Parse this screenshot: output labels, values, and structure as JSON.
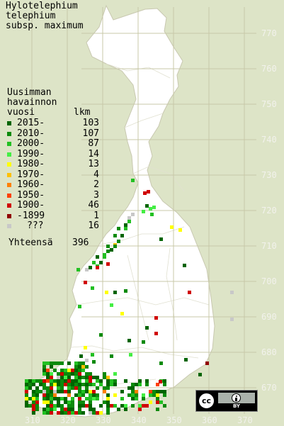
{
  "title": {
    "line1": "Hylotelephium",
    "line2": "telephium",
    "line3": "subsp. maximum"
  },
  "legend": {
    "heading1": "Uusimman",
    "heading2": "havainnon",
    "col_year": "vuosi",
    "col_count": "lkm",
    "items": [
      {
        "label": "2015-",
        "count": "103",
        "color": "#006400"
      },
      {
        "label": "2010-",
        "count": "107",
        "color": "#0b8a0b"
      },
      {
        "label": "2000-",
        "count": "87",
        "color": "#22c022"
      },
      {
        "label": "1990-",
        "count": "14",
        "color": "#44ee44"
      },
      {
        "label": "1980-",
        "count": "13",
        "color": "#ffff00"
      },
      {
        "label": "1970-",
        "count": "4",
        "color": "#ffc000"
      },
      {
        "label": "1960-",
        "count": "2",
        "color": "#ff8000"
      },
      {
        "label": "1950-",
        "count": "3",
        "color": "#ff4000"
      },
      {
        "label": "1900-",
        "count": "46",
        "color": "#d00000"
      },
      {
        "label": "-1899",
        "count": "1",
        "color": "#900000"
      },
      {
        "label": "???",
        "count": "16",
        "color": "#c8c8c8"
      }
    ],
    "total_label": "Yhteensä",
    "total_count": "396"
  },
  "grid": {
    "y_labels": [
      "770",
      "760",
      "750",
      "740",
      "730",
      "720",
      "710",
      "700",
      "690",
      "680",
      "670"
    ],
    "x_labels": [
      "310",
      "320",
      "330",
      "340",
      "350",
      "360",
      "370"
    ]
  },
  "license": {
    "cc": "cc",
    "by": "BY"
  }
}
